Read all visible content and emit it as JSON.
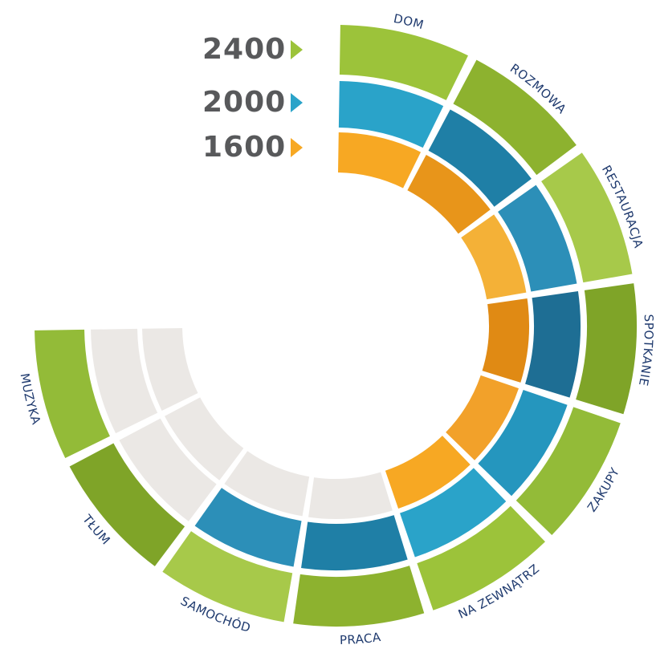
{
  "colors": {
    "green": "#9cc33a",
    "blue": "#2aa3c9",
    "orange": "#f7a823",
    "grey_text": "#58595b",
    "label_text": "#1f3a6e"
  },
  "legend": [
    {
      "value": "2400",
      "color": "#9cc33a"
    },
    {
      "value": "2000",
      "color": "#2aa3c9"
    },
    {
      "value": "1600",
      "color": "#f7a823"
    }
  ],
  "categories": [
    {
      "label": "DOM",
      "rings": [
        "green",
        "blue",
        "orange"
      ]
    },
    {
      "label": "ROZMOWA",
      "rings": [
        "green",
        "blue",
        "orange"
      ]
    },
    {
      "label": "RESTAURACJA",
      "rings": [
        "green",
        "blue",
        "orange"
      ]
    },
    {
      "label": "SPOTKANIE",
      "rings": [
        "green",
        "blue",
        "orange"
      ]
    },
    {
      "label": "ZAKUPY",
      "rings": [
        "green",
        "blue",
        "orange"
      ]
    },
    {
      "label": "NA ZEWNĄTRZ",
      "rings": [
        "green",
        "blue",
        "orange"
      ]
    },
    {
      "label": "PRACA",
      "rings": [
        "green",
        "blue",
        "none"
      ]
    },
    {
      "label": "SAMOCHÓD",
      "rings": [
        "green",
        "blue",
        "none"
      ]
    },
    {
      "label": "TŁUM",
      "rings": [
        "green",
        "none",
        "none"
      ]
    },
    {
      "label": "MUZYKA",
      "rings": [
        "green",
        "none",
        "none"
      ]
    }
  ]
}
